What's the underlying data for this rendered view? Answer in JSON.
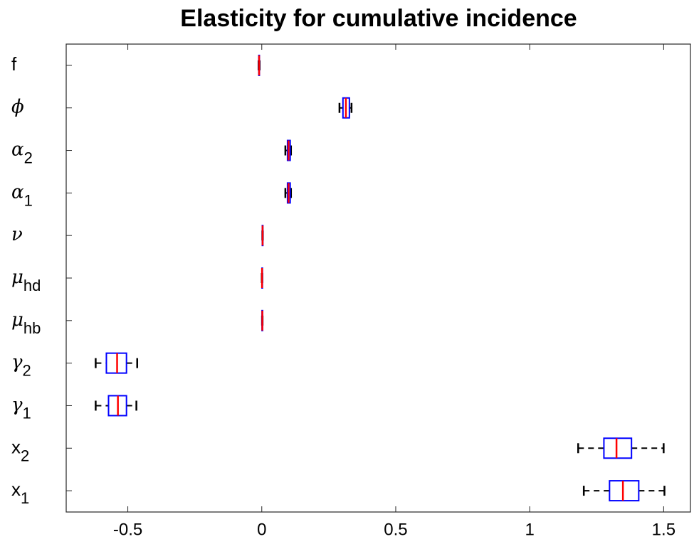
{
  "chart_data": {
    "type": "boxplot",
    "orientation": "horizontal",
    "title": "Elasticity for cumulative incidence",
    "categories": [
      {
        "symbol": "f"
      },
      {
        "symbol": "ϕ"
      },
      {
        "symbol": "α",
        "subscript": "2"
      },
      {
        "symbol": "α",
        "subscript": "1"
      },
      {
        "symbol": "ν"
      },
      {
        "symbol": "μ",
        "subscript": "hd"
      },
      {
        "symbol": "μ",
        "subscript": "hb"
      },
      {
        "symbol": "γ",
        "subscript": "2"
      },
      {
        "symbol": "γ",
        "subscript": "1"
      },
      {
        "symbol": "x",
        "subscript": "2"
      },
      {
        "symbol": "x",
        "subscript": "1"
      }
    ],
    "min": [
      -0.012,
      0.29,
      0.088,
      0.088,
      0.002,
      0.0,
      0.001,
      -0.62,
      -0.62,
      1.181,
      1.202
    ],
    "q1": [
      -0.011,
      0.303,
      0.096,
      0.096,
      0.002,
      0.001,
      0.001,
      -0.58,
      -0.572,
      1.277,
      1.298
    ],
    "median": [
      -0.01,
      0.314,
      0.1,
      0.1,
      0.003,
      0.001,
      0.002,
      -0.54,
      -0.537,
      1.324,
      1.348
    ],
    "q3": [
      -0.009,
      0.327,
      0.106,
      0.106,
      0.004,
      0.002,
      0.003,
      -0.505,
      -0.505,
      1.38,
      1.407
    ],
    "max": [
      -0.008,
      0.335,
      0.109,
      0.109,
      0.004,
      0.002,
      0.003,
      -0.465,
      -0.468,
      1.5,
      1.503
    ],
    "box_color": "#0000ff",
    "median_color": "#ff0000",
    "whisker_color": "#000000",
    "xlim": [
      -0.73,
      1.6
    ],
    "xticks": [
      -0.5,
      0,
      0.5,
      1,
      1.5
    ]
  }
}
